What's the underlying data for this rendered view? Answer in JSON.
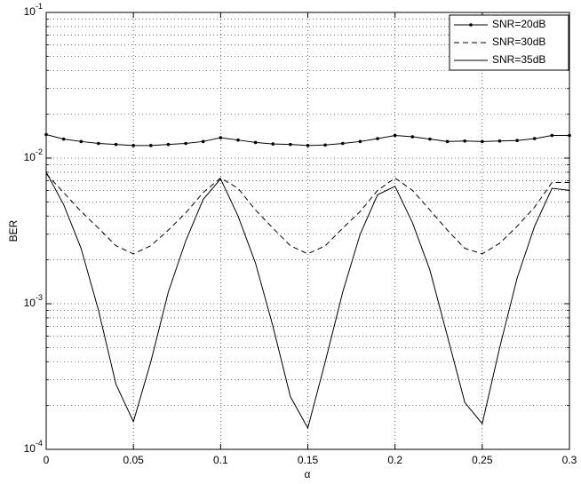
{
  "chart_data": {
    "type": "line",
    "y_label": "BER",
    "x_label": "α",
    "x": [
      0,
      0.01,
      0.02,
      0.03,
      0.04,
      0.05,
      0.06,
      0.07,
      0.08,
      0.09,
      0.1,
      0.11,
      0.12,
      0.13,
      0.14,
      0.15,
      0.16,
      0.17,
      0.18,
      0.19,
      0.2,
      0.21,
      0.22,
      0.23,
      0.24,
      0.25,
      0.26,
      0.27,
      0.28,
      0.29,
      0.3
    ],
    "series": [
      {
        "name": "SNR=20dB",
        "color": "#000000",
        "line_style": "solid",
        "marker": "dot",
        "values": [
          0.0145,
          0.0135,
          0.013,
          0.0126,
          0.0124,
          0.0122,
          0.0122,
          0.0124,
          0.0126,
          0.013,
          0.0138,
          0.0133,
          0.0128,
          0.0125,
          0.0124,
          0.0122,
          0.0123,
          0.0126,
          0.013,
          0.0136,
          0.0143,
          0.014,
          0.0135,
          0.013,
          0.0131,
          0.013,
          0.0131,
          0.0132,
          0.0136,
          0.0143,
          0.0143
        ]
      },
      {
        "name": "SNR=30dB",
        "color": "#000000",
        "line_style": "dashed",
        "values": [
          0.0078,
          0.0058,
          0.0043,
          0.0033,
          0.0025,
          0.0022,
          0.0025,
          0.0032,
          0.0042,
          0.0058,
          0.0073,
          0.0062,
          0.0044,
          0.0033,
          0.0025,
          0.0022,
          0.0025,
          0.0033,
          0.0043,
          0.006,
          0.0073,
          0.006,
          0.0044,
          0.0032,
          0.0024,
          0.0022,
          0.0026,
          0.0034,
          0.0046,
          0.0068,
          0.0068
        ]
      },
      {
        "name": "SNR=35dB",
        "color": "#000000",
        "line_style": "solid",
        "values": [
          0.008,
          0.0048,
          0.0024,
          0.0009,
          0.00028,
          0.000155,
          0.0004,
          0.0012,
          0.0027,
          0.0052,
          0.0072,
          0.004,
          0.0019,
          0.0007,
          0.00023,
          0.00014,
          0.0004,
          0.0012,
          0.003,
          0.0056,
          0.0064,
          0.0036,
          0.0017,
          0.0006,
          0.00021,
          0.00015,
          0.0005,
          0.0015,
          0.0034,
          0.0062,
          0.006
        ]
      }
    ],
    "xlim": [
      0,
      0.3
    ],
    "xticks": [
      0,
      0.05,
      0.1,
      0.15,
      0.2,
      0.25,
      0.3
    ],
    "ylim": [
      0.0001,
      0.1
    ],
    "yticks": [
      {
        "value": 0.0001,
        "label": "10^-4"
      },
      {
        "value": 0.001,
        "label": "10^-3"
      },
      {
        "value": 0.01,
        "label": "10^-2"
      },
      {
        "value": 0.1,
        "label": "10^-1"
      }
    ],
    "y_scale": "log",
    "grid": true,
    "minor_grid": true,
    "legend": "top-right"
  }
}
